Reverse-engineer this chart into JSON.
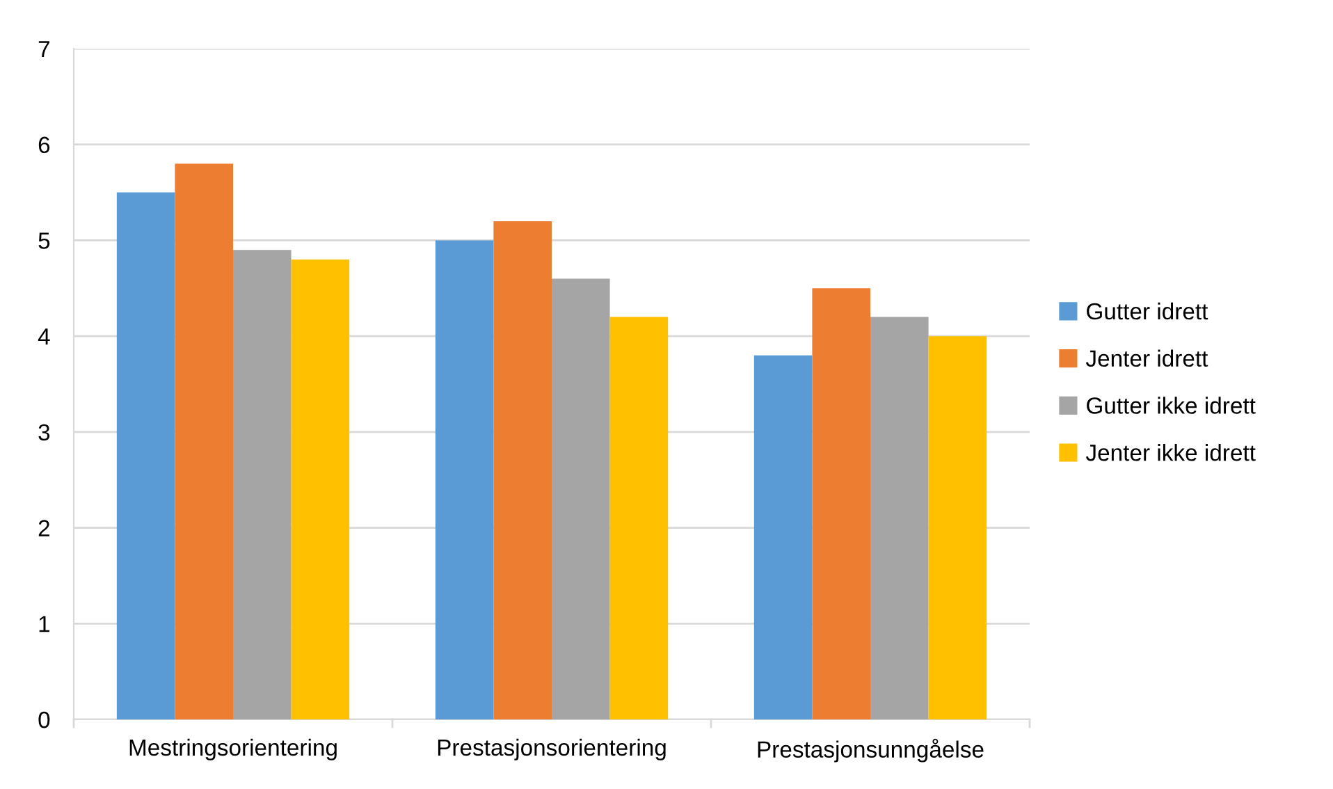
{
  "chart_data": {
    "type": "bar",
    "categories": [
      "Mestringsorientering",
      "Prestasjonsorientering",
      "Prestasjonsunngåelse"
    ],
    "series": [
      {
        "name": "Gutter idrett",
        "color": "#5b9bd5",
        "values": [
          5.5,
          5.0,
          3.8
        ]
      },
      {
        "name": "Jenter idrett",
        "color": "#ed7d31",
        "values": [
          5.8,
          5.2,
          4.5
        ]
      },
      {
        "name": "Gutter ikke idrett",
        "color": "#a5a5a5",
        "values": [
          4.9,
          4.6,
          4.2
        ]
      },
      {
        "name": "Jenter ikke idrett",
        "color": "#ffc000",
        "values": [
          4.8,
          4.2,
          4.0
        ]
      }
    ],
    "ylim": [
      0,
      7
    ],
    "yticks": [
      0,
      1,
      2,
      3,
      4,
      5,
      6,
      7
    ],
    "grid": "y",
    "legend": "right"
  }
}
